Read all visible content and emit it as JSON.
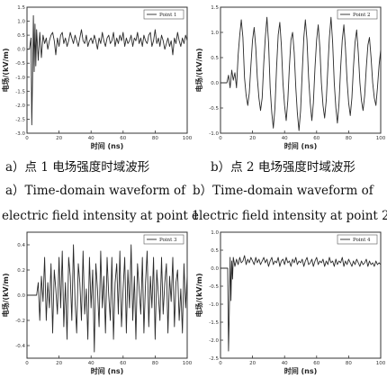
{
  "captions": {
    "a_zh": "a）点 1 电场强度时域波形",
    "b_zh": "b）点 2 电场强度时域波形",
    "a_en_1": "a）Time-domain waveform of",
    "b_en_1": "b）Time-domain waveform of",
    "a_en_2": "electric field intensity at point 1",
    "b_en_2": "electric field intensity at point 2"
  },
  "chart_data": [
    {
      "type": "line",
      "xlabel": "时间 (ns)",
      "ylabel": "电场/(kV/m)",
      "xlim": [
        0,
        100
      ],
      "ylim": [
        -3.0,
        1.5
      ],
      "xticks": [
        0,
        20,
        40,
        60,
        80,
        100
      ],
      "yticks": [
        -3.0,
        -2.5,
        -2.0,
        -1.5,
        -1.0,
        -0.5,
        0.0,
        0.5,
        1.0,
        1.5
      ],
      "ytick_labels": [
        "-3.0",
        "-2.5",
        "-2.0",
        "-1.5",
        "-1.0",
        "-0.5",
        "0.0",
        "0.5",
        "1.0",
        "1.5"
      ],
      "legend": "Point 1",
      "legend_position": "top-right",
      "series": [
        {
          "x": [
            0,
            1.5,
            2.5,
            3,
            3.5,
            4,
            4.5,
            5,
            5.5,
            6,
            7,
            8,
            9,
            10,
            11,
            12,
            13,
            14,
            15,
            16,
            17,
            18,
            19,
            20,
            21,
            22,
            23,
            24,
            25,
            26,
            27,
            28,
            29,
            30,
            31,
            32,
            33,
            34,
            35,
            36,
            37,
            38,
            39,
            40,
            41,
            42,
            43,
            44,
            45,
            46,
            47,
            48,
            49,
            50,
            51,
            52,
            53,
            54,
            55,
            56,
            57,
            58,
            59,
            60,
            61,
            62,
            63,
            64,
            65,
            66,
            67,
            68,
            69,
            70,
            71,
            72,
            73,
            74,
            75,
            76,
            77,
            78,
            79,
            80,
            81,
            82,
            83,
            84,
            85,
            86,
            87,
            88,
            89,
            90,
            91,
            92,
            93,
            94,
            95,
            96,
            97,
            98,
            99,
            100
          ],
          "values": [
            0.0,
            0.0,
            0.4,
            -2.7,
            -1.0,
            1.2,
            -0.8,
            0.9,
            -0.6,
            0.7,
            -0.4,
            0.6,
            -0.3,
            0.5,
            0.2,
            0.4,
            0.0,
            0.3,
            0.5,
            0.6,
            0.3,
            -0.2,
            0.4,
            0.1,
            0.5,
            0.6,
            0.2,
            0.4,
            0.1,
            0.3,
            0.6,
            0.4,
            0.2,
            0.5,
            0.3,
            0.1,
            0.4,
            0.7,
            0.3,
            0.2,
            0.5,
            0.1,
            0.3,
            0.4,
            0.2,
            0.5,
            0.3,
            0.0,
            0.4,
            0.2,
            0.6,
            0.3,
            0.1,
            0.4,
            0.5,
            0.2,
            0.3,
            0.6,
            0.1,
            0.4,
            0.2,
            0.5,
            0.3,
            0.6,
            0.1,
            0.4,
            0.2,
            0.3,
            0.5,
            0.1,
            0.4,
            0.3,
            0.6,
            0.2,
            0.4,
            0.1,
            0.5,
            0.3,
            0.2,
            0.5,
            0.6,
            0.1,
            0.3,
            0.7,
            0.2,
            0.4,
            0.1,
            0.5,
            0.3,
            0.0,
            0.2,
            0.4,
            0.1,
            0.3,
            -0.2,
            0.4,
            0.2,
            0.6,
            0.3,
            0.1,
            0.4,
            0.2,
            0.5,
            0.3
          ]
        }
      ]
    },
    {
      "type": "line",
      "xlabel": "时间 (ns)",
      "ylabel": "电场/(kV/m)",
      "xlim": [
        0,
        100
      ],
      "ylim": [
        -1.0,
        1.5
      ],
      "xticks": [
        0,
        20,
        40,
        60,
        80,
        100
      ],
      "yticks": [
        -1.0,
        -0.5,
        0.0,
        0.5,
        1.0,
        1.5
      ],
      "ytick_labels": [
        "-1.0",
        "-0.5",
        "0.0",
        "0.5",
        "1.0",
        "1.5"
      ],
      "legend": "Point 2",
      "legend_position": "top-right",
      "series": [
        {
          "x": [
            0,
            2,
            4,
            5,
            6,
            7,
            8,
            9,
            10,
            11,
            12,
            13,
            14,
            15,
            16,
            17,
            18,
            19,
            20,
            21,
            22,
            23,
            24,
            25,
            26,
            27,
            28,
            29,
            30,
            31,
            32,
            33,
            34,
            35,
            36,
            37,
            38,
            39,
            40,
            41,
            42,
            43,
            44,
            45,
            46,
            47,
            48,
            49,
            50,
            51,
            52,
            53,
            54,
            55,
            56,
            57,
            58,
            59,
            60,
            61,
            62,
            63,
            64,
            65,
            66,
            67,
            68,
            69,
            70,
            71,
            72,
            73,
            74,
            75,
            76,
            77,
            78,
            79,
            80,
            81,
            82,
            83,
            84,
            85,
            86,
            87,
            88,
            89,
            90,
            91,
            92,
            93,
            94,
            95,
            96,
            97,
            98,
            99,
            100
          ],
          "values": [
            0.0,
            0.0,
            0.0,
            0.15,
            -0.1,
            0.25,
            0.05,
            0.2,
            -0.1,
            0.55,
            0.95,
            1.25,
            0.9,
            0.1,
            -0.25,
            -0.45,
            -0.2,
            0.35,
            0.85,
            1.1,
            0.7,
            0.1,
            -0.3,
            -0.55,
            -0.3,
            0.4,
            0.9,
            1.3,
            0.8,
            -0.1,
            -0.6,
            -0.9,
            -0.5,
            0.3,
            0.95,
            1.2,
            0.75,
            0.0,
            -0.45,
            -0.75,
            -0.35,
            0.3,
            0.85,
            1.0,
            0.6,
            -0.1,
            -0.6,
            -0.95,
            -0.55,
            0.2,
            0.9,
            1.25,
            0.85,
            0.1,
            -0.4,
            -0.75,
            -0.4,
            0.3,
            0.85,
            1.15,
            0.7,
            0.0,
            -0.45,
            -0.7,
            -0.35,
            0.3,
            0.9,
            1.3,
            0.8,
            0.0,
            -0.5,
            -0.8,
            -0.4,
            0.3,
            0.85,
            1.15,
            0.7,
            0.05,
            -0.4,
            -0.65,
            -0.3,
            0.3,
            0.8,
            1.05,
            0.6,
            0.0,
            -0.35,
            -0.55,
            -0.25,
            0.3,
            0.75,
            0.9,
            0.5,
            0.0,
            -0.3,
            -0.45,
            -0.1,
            0.35,
            0.65
          ]
        }
      ]
    },
    {
      "type": "line",
      "xlabel": "时间 (ns)",
      "ylabel": "电场/(kV/m)",
      "xlim": [
        0,
        100
      ],
      "ylim": [
        -0.5,
        0.5
      ],
      "xticks": [
        0,
        20,
        40,
        60,
        80,
        100
      ],
      "yticks": [
        -0.4,
        -0.2,
        0.0,
        0.2,
        0.4
      ],
      "ytick_labels": [
        "-0.4",
        "-0.2",
        "0.0",
        "0.2",
        "0.4"
      ],
      "legend": "Point 3",
      "legend_position": "top-right",
      "series": [
        {
          "x": [
            0,
            4,
            6,
            7,
            8,
            9,
            10,
            11,
            12,
            13,
            14,
            15,
            16,
            17,
            18,
            19,
            20,
            21,
            22,
            23,
            24,
            25,
            26,
            27,
            28,
            29,
            30,
            31,
            32,
            33,
            34,
            35,
            36,
            37,
            38,
            39,
            40,
            41,
            42,
            43,
            44,
            45,
            46,
            47,
            48,
            49,
            50,
            51,
            52,
            53,
            54,
            55,
            56,
            57,
            58,
            59,
            60,
            61,
            62,
            63,
            64,
            65,
            66,
            67,
            68,
            69,
            70,
            71,
            72,
            73,
            74,
            75,
            76,
            77,
            78,
            79,
            80,
            81,
            82,
            83,
            84,
            85,
            86,
            87,
            88,
            89,
            90,
            91,
            92,
            93,
            94,
            95,
            96,
            97,
            98,
            99,
            100
          ],
          "values": [
            0.0,
            0.0,
            0.0,
            0.1,
            -0.2,
            0.15,
            -0.05,
            0.3,
            -0.2,
            0.1,
            -0.1,
            0.25,
            -0.3,
            0.2,
            0.05,
            -0.15,
            0.3,
            -0.1,
            0.35,
            -0.25,
            0.1,
            -0.35,
            0.3,
            0.15,
            -0.2,
            0.4,
            -0.05,
            -0.3,
            0.25,
            0.1,
            -0.2,
            0.35,
            -0.15,
            0.05,
            -0.35,
            0.3,
            -0.1,
            0.2,
            -0.45,
            0.25,
            0.05,
            -0.25,
            0.35,
            -0.1,
            0.15,
            -0.3,
            0.3,
            0.0,
            -0.2,
            0.3,
            -0.35,
            0.1,
            0.25,
            -0.15,
            0.35,
            -0.25,
            0.05,
            0.3,
            -0.3,
            0.2,
            -0.1,
            0.4,
            -0.2,
            0.15,
            -0.35,
            0.25,
            0.05,
            -0.15,
            0.3,
            -0.3,
            0.1,
            0.35,
            -0.25,
            0.15,
            -0.1,
            0.3,
            -0.35,
            0.2,
            0.0,
            -0.2,
            0.3,
            -0.15,
            0.1,
            0.25,
            -0.3,
            0.15,
            -0.05,
            0.3,
            -0.25,
            0.1,
            0.2,
            -0.2,
            0.05,
            -0.3,
            0.25,
            -0.1,
            0.15
          ]
        }
      ]
    },
    {
      "type": "line",
      "xlabel": "时间 (ns)",
      "ylabel": "电场/(kV/m)",
      "xlim": [
        0,
        100
      ],
      "ylim": [
        -2.5,
        1.0
      ],
      "xticks": [
        0,
        20,
        40,
        60,
        80,
        100
      ],
      "yticks": [
        -2.5,
        -2.0,
        -1.5,
        -1.0,
        -0.5,
        0.0,
        0.5,
        1.0
      ],
      "ytick_labels": [
        "-2.5",
        "-2.0",
        "-1.5",
        "-1.0",
        "-0.5",
        "0.0",
        "0.5",
        "1.0"
      ],
      "legend": "Point 4",
      "legend_position": "top-right",
      "series": [
        {
          "x": [
            0,
            3,
            4.5,
            5,
            5.5,
            6,
            6.5,
            7,
            7.5,
            8,
            9,
            10,
            11,
            12,
            13,
            14,
            15,
            16,
            17,
            18,
            19,
            20,
            21,
            22,
            23,
            24,
            25,
            26,
            27,
            28,
            29,
            30,
            31,
            32,
            33,
            34,
            35,
            36,
            37,
            38,
            39,
            40,
            41,
            42,
            43,
            44,
            45,
            46,
            47,
            48,
            49,
            50,
            51,
            52,
            53,
            54,
            55,
            56,
            57,
            58,
            59,
            60,
            61,
            62,
            63,
            64,
            65,
            66,
            67,
            68,
            69,
            70,
            71,
            72,
            73,
            74,
            75,
            76,
            77,
            78,
            79,
            80,
            81,
            82,
            83,
            84,
            85,
            86,
            87,
            88,
            89,
            90,
            91,
            92,
            93,
            94,
            95,
            96,
            97,
            98,
            99,
            100
          ],
          "values": [
            0.0,
            0.0,
            0.0,
            -2.3,
            -1.2,
            0.3,
            -0.9,
            0.2,
            -0.3,
            0.3,
            0.05,
            0.25,
            0.1,
            0.3,
            0.15,
            0.2,
            0.35,
            0.1,
            0.25,
            0.15,
            0.3,
            0.2,
            0.1,
            0.3,
            0.15,
            0.25,
            0.1,
            0.2,
            0.3,
            0.15,
            0.25,
            0.05,
            0.2,
            0.3,
            0.1,
            0.2,
            0.15,
            0.3,
            0.05,
            0.2,
            0.25,
            0.1,
            0.3,
            0.15,
            0.2,
            0.05,
            0.25,
            0.15,
            0.3,
            0.1,
            0.2,
            0.15,
            0.25,
            0.05,
            0.2,
            0.3,
            0.1,
            0.15,
            0.25,
            0.05,
            0.2,
            0.3,
            0.1,
            0.2,
            0.15,
            0.25,
            0.05,
            0.2,
            0.1,
            0.3,
            0.15,
            0.2,
            0.05,
            0.25,
            0.1,
            0.2,
            0.15,
            0.3,
            0.05,
            0.2,
            0.1,
            0.25,
            0.15,
            0.05,
            0.2,
            0.1,
            0.25,
            0.15,
            0.05,
            0.2,
            0.1,
            0.15,
            0.25,
            0.05,
            0.2,
            0.1,
            0.15,
            0.05,
            0.2,
            0.1,
            0.15,
            0.1
          ]
        }
      ]
    }
  ]
}
